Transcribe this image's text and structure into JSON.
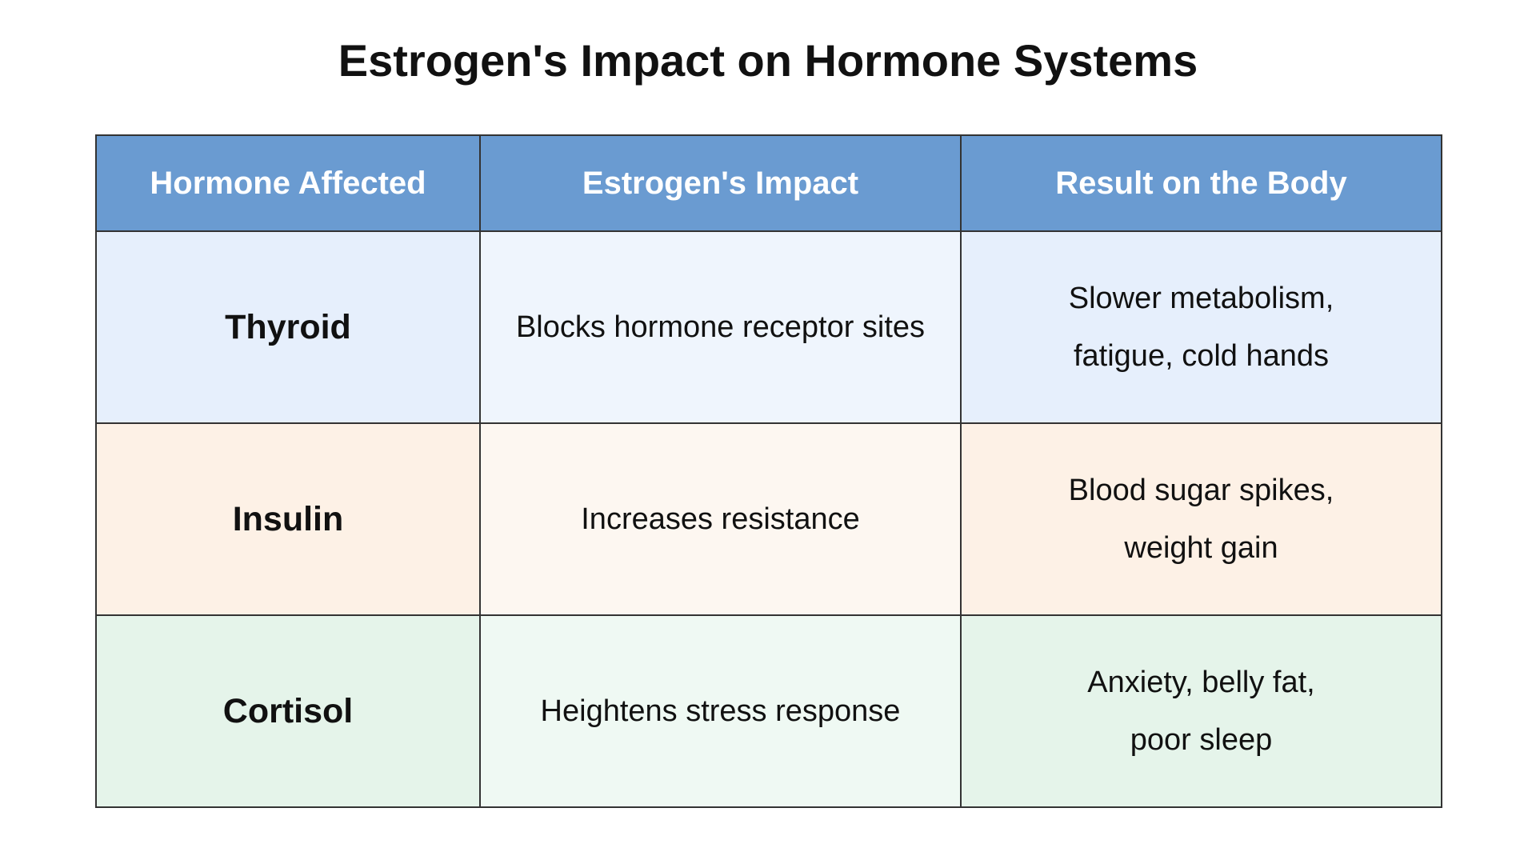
{
  "header": {
    "title": "Estrogen's Impact on Hormone Systems"
  },
  "table": {
    "columns": [
      "Hormone Affected",
      "Estrogen's Impact",
      "Result on the Body"
    ],
    "rows": [
      [
        "Thyroid",
        "Blocks hormone receptor sites",
        "Slower metabolism, fatigue, cold hands"
      ],
      [
        "Insulin",
        "Increases resistance",
        "Blood sugar spikes, weight gain"
      ],
      [
        "Cortisol",
        "Heightens stress response",
        "Anxiety, belly fat, poor sleep"
      ]
    ]
  }
}
